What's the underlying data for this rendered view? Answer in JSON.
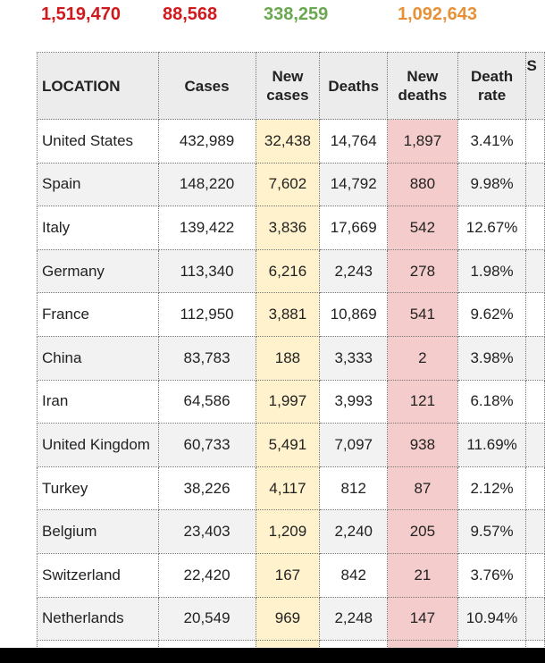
{
  "totals": [
    {
      "value": "1,519,470",
      "color": "#d0191c"
    },
    {
      "value": "88,568",
      "color": "#d0191c"
    },
    {
      "value": "338,259",
      "color": "#6aa84f"
    },
    {
      "value": "1,092,643",
      "color": "#e69138"
    }
  ],
  "headers": [
    "LOCATION",
    "Cases",
    "New cases",
    "Deaths",
    "New deaths",
    "Death rate",
    "S"
  ],
  "rows": [
    [
      "United States",
      "432,989",
      "32,438",
      "14,764",
      "1,897",
      "3.41%"
    ],
    [
      "Spain",
      "148,220",
      "7,602",
      "14,792",
      "880",
      "9.98%"
    ],
    [
      "Italy",
      "139,422",
      "3,836",
      "17,669",
      "542",
      "12.67%"
    ],
    [
      "Germany",
      "113,340",
      "6,216",
      "2,243",
      "278",
      "1.98%"
    ],
    [
      "France",
      "112,950",
      "3,881",
      "10,869",
      "541",
      "9.62%"
    ],
    [
      "China",
      "83,783",
      "188",
      "3,333",
      "2",
      "3.98%"
    ],
    [
      "Iran",
      "64,586",
      "1,997",
      "3,993",
      "121",
      "6.18%"
    ],
    [
      "United Kingdom",
      "60,733",
      "5,491",
      "7,097",
      "938",
      "11.69%"
    ],
    [
      "Turkey",
      "38,226",
      "4,117",
      "812",
      "87",
      "2.12%"
    ],
    [
      "Belgium",
      "23,403",
      "1,209",
      "2,240",
      "205",
      "9.57%"
    ],
    [
      "Switzerland",
      "22,420",
      "167",
      "842",
      "21",
      "3.76%"
    ],
    [
      "Netherlands",
      "20,549",
      "969",
      "2,248",
      "147",
      "10.94%"
    ]
  ]
}
